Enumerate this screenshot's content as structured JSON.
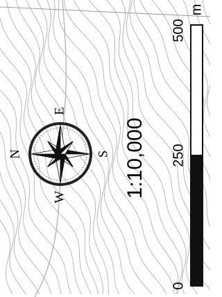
{
  "map": {
    "scale_text": "1:10,000",
    "compass": {
      "north": "N",
      "east": "E",
      "south": "S",
      "west": "W"
    },
    "scale_bar": {
      "labels": [
        "0",
        "250",
        "500"
      ],
      "unit": "m"
    }
  }
}
